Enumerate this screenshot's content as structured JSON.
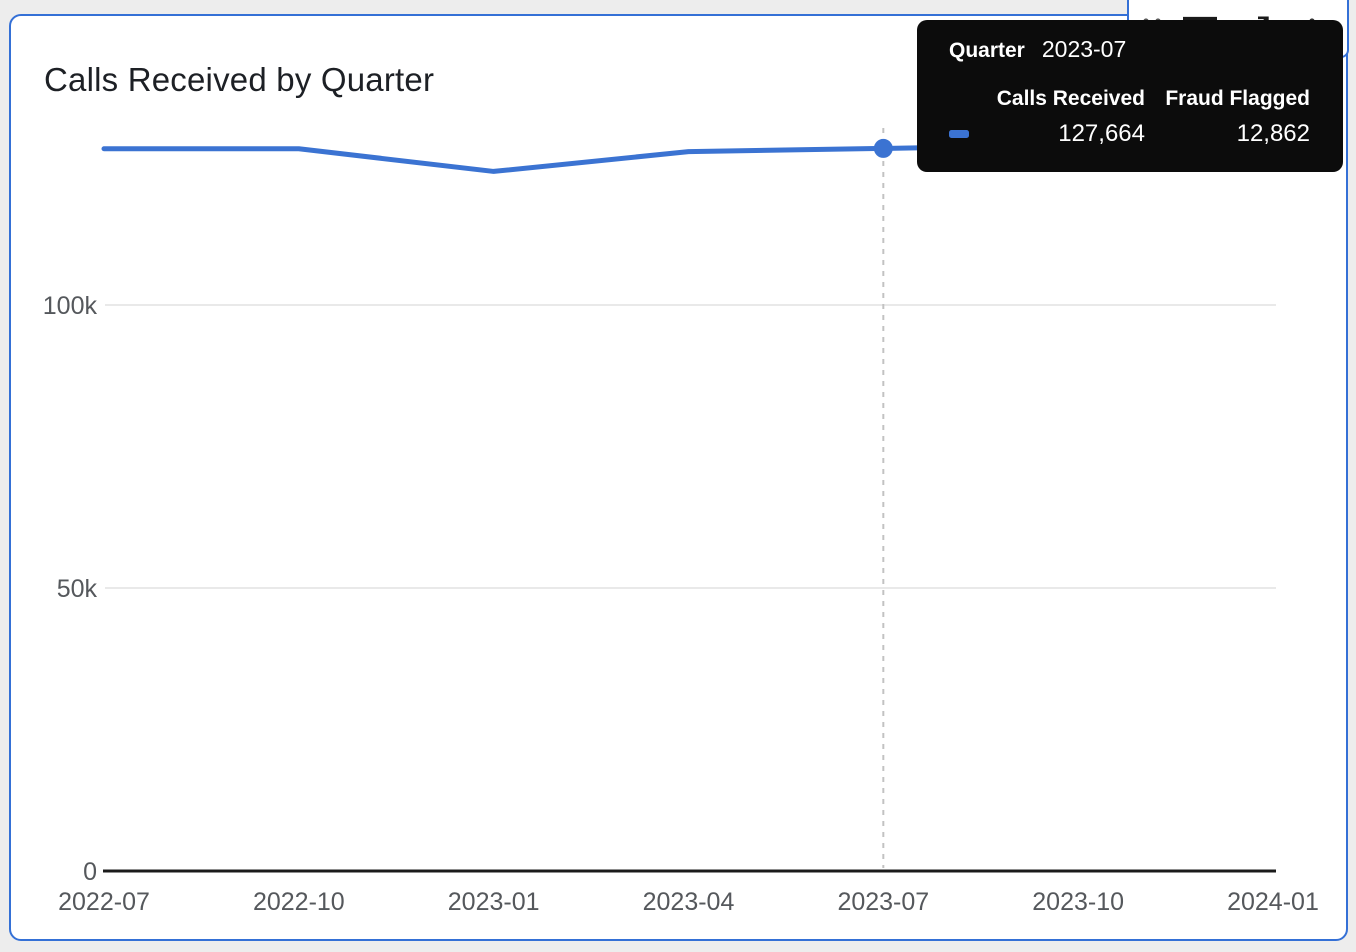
{
  "card": {
    "title": "Calls Received by Quarter"
  },
  "toolbar": {
    "icons": [
      "drag-handle",
      "filter-funnel",
      "expand-arrow",
      "more-options"
    ]
  },
  "tooltip": {
    "label": "Quarter",
    "value": "2023-07",
    "columns": [
      "Calls Received",
      "Fraud Flagged"
    ],
    "values": [
      "127,664",
      "12,862"
    ]
  },
  "chart_data": {
    "type": "line",
    "title": "Calls Received by Quarter",
    "x_ticks": [
      "2022-07",
      "2022-10",
      "2023-01",
      "2023-04",
      "2023-07",
      "2023-10",
      "2024-01"
    ],
    "y_ticks": [
      {
        "label": "0",
        "value": 0
      },
      {
        "label": "50k",
        "value": 50000
      },
      {
        "label": "100k",
        "value": 100000
      }
    ],
    "ylim": [
      0,
      131000
    ],
    "grid": true,
    "legend_position": "none",
    "series": [
      {
        "name": "Calls Received",
        "color": "#3b73d2",
        "x": [
          "2022-07",
          "2022-10",
          "2023-01",
          "2023-04",
          "2023-07",
          "2023-10",
          "2024-01"
        ],
        "values": [
          127600,
          127600,
          123600,
          127100,
          127664,
          128300,
          128300
        ]
      }
    ],
    "hover": {
      "x": "2023-07",
      "point_index": 4,
      "calls_received": 127664,
      "fraud_flagged": 12862
    }
  },
  "colors": {
    "page_background": "#ededed",
    "selection_border": "#3470d6",
    "series_blue": "#3b73d2",
    "gridline": "#e2e2e2",
    "axis_line": "#1b1b1b",
    "axis_label": "#55585c",
    "hover_dash": "#c2c2c2",
    "tooltip_background": "#0c0c0c",
    "tooltip_text": "#ffffff"
  }
}
